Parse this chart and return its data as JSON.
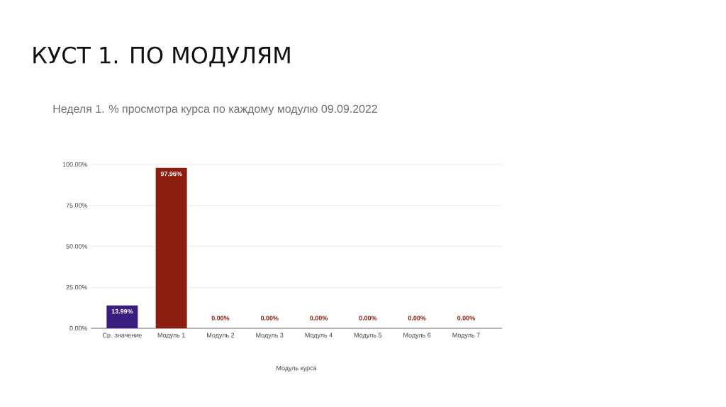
{
  "chart_data": {
    "type": "bar",
    "title": "КУСТ 1. ПО МОДУЛЯМ",
    "subtitle": "Неделя 1. % просмотра курса по каждому модулю 09.09.2022",
    "xlabel": "Модуль курса",
    "categories": [
      "Ср. значение",
      "Модуль 1",
      "Модуль 2",
      "Модуль 3",
      "Модуль 4",
      "Модуль 5",
      "Модуль 6",
      "Модуль 7"
    ],
    "values": [
      13.99,
      97.96,
      0,
      0,
      0,
      0,
      0,
      0
    ],
    "colors": [
      "#3b1c7f",
      "#8b1e0f",
      "#8b1e0f",
      "#8b1e0f",
      "#8b1e0f",
      "#8b1e0f",
      "#8b1e0f",
      "#8b1e0f"
    ],
    "value_labels": [
      "13.99%",
      "97.96%",
      "0.00%",
      "0.00%",
      "0.00%",
      "0.00%",
      "0.00%",
      "0.00%"
    ],
    "ylim": [
      0,
      100
    ],
    "yticks": [
      {
        "value": 0,
        "label": "0.00%"
      },
      {
        "value": 25,
        "label": "25.00%"
      },
      {
        "value": 50,
        "label": "50.00%"
      },
      {
        "value": 75,
        "label": "75.00%"
      },
      {
        "value": 100,
        "label": "100.00%"
      }
    ],
    "grid": "y"
  }
}
